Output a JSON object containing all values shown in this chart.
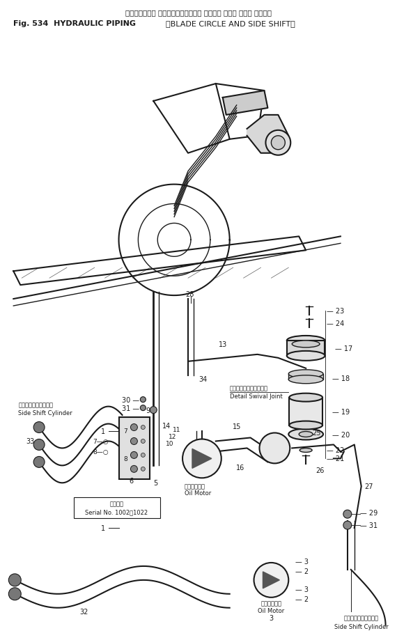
{
  "title_japanese": "ハイドロリック パイピング（ブレード サークル および サイド シフト）",
  "fig_label_en": "Fig. 534  HYDRAULIC PIPING",
  "fig_paren_en": "（BLADE CIRCLE AND SIDE SHIFT）",
  "bg_color": "#ffffff",
  "text_color": "#000000",
  "line_color": "#1a1a1a",
  "figsize": [
    5.7,
    9.2
  ],
  "dpi": 100,
  "swivel_label_jp": "スイベルジョイント詳細",
  "swivel_label_en": "Detail Swival Joint",
  "side_shift_label_jp": "サイドシフトシリンダ",
  "side_shift_label_en": "Side Shift Cylinder",
  "oil_motor_label_jp": "オイルモータ",
  "oil_motor_label_en": "Oil Motor",
  "serial_label_jp": "備用番号",
  "serial_label_en": "Serial No. 1002～1022"
}
